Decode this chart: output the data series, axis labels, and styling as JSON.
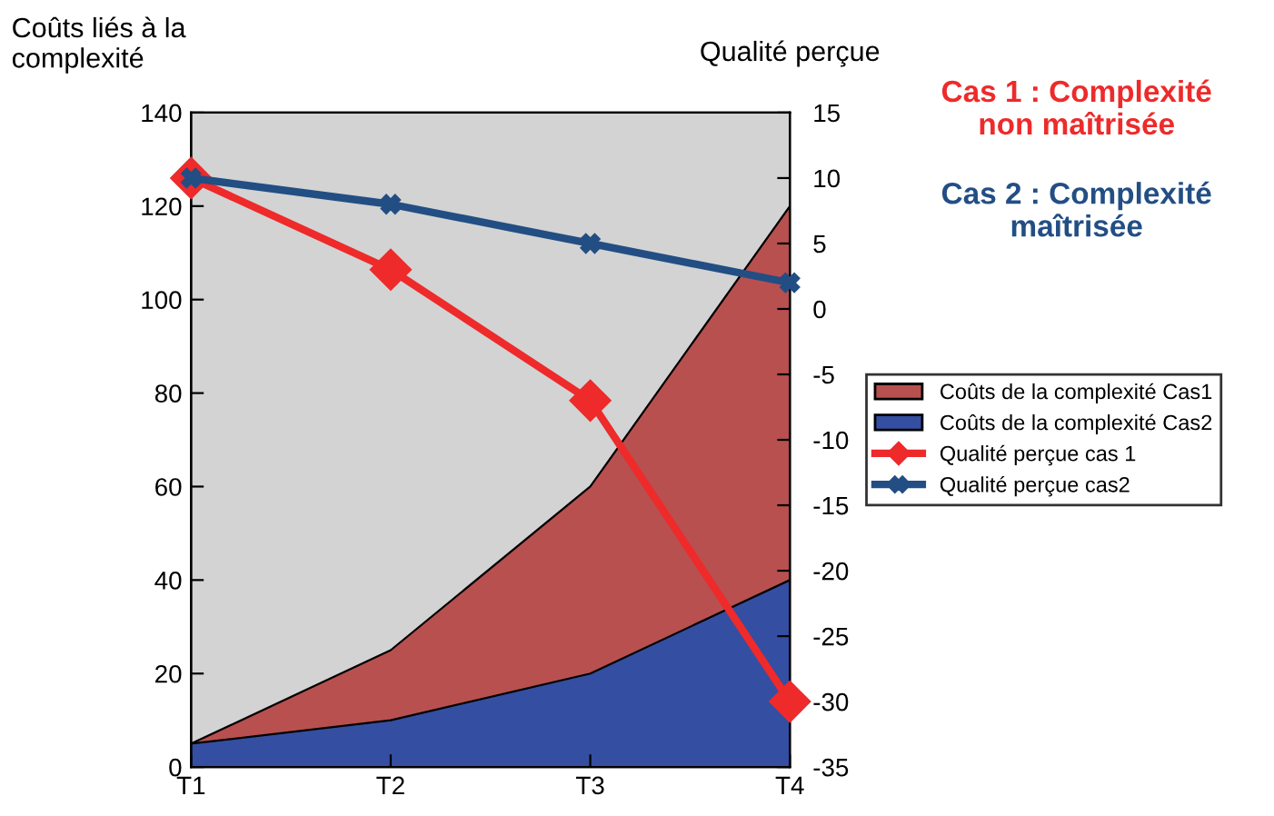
{
  "chart_data": {
    "type": "area",
    "categories": [
      "T1",
      "T2",
      "T3",
      "T4"
    ],
    "ylabel": "Coûts liés à la\ncomplexité",
    "y2label": "Qualité perçue",
    "series": [
      {
        "name": "Coûts de la complexité Cas1",
        "color": "#b85050",
        "values": [
          5,
          25,
          60,
          120
        ]
      },
      {
        "name": "Coûts de la complexité Cas2",
        "color": "#344ea2",
        "values": [
          5,
          10,
          20,
          40
        ]
      },
      {
        "name": "Qualité perçue cas 1",
        "type": "line",
        "axis": "y2",
        "color": "#ee2a2a",
        "marker": "diamond",
        "values": [
          10,
          3,
          -7,
          -30
        ]
      },
      {
        "name": "Qualité perçue cas2",
        "type": "line",
        "axis": "y2",
        "color": "#224e84",
        "marker": "cross",
        "values": [
          10,
          8,
          5,
          2
        ]
      }
    ],
    "ylim": [
      0,
      140
    ],
    "yticks": [
      0,
      20,
      40,
      60,
      80,
      100,
      120,
      140
    ],
    "y2lim": [
      -35,
      15
    ],
    "y2ticks": [
      -35,
      -30,
      -25,
      -20,
      -15,
      -10,
      -5,
      0,
      5,
      10,
      15
    ],
    "annotations": [
      "Cas 1 : Complexité\nnon maîtrisée",
      "Cas 2 : Complexité\nmaîtrisée"
    ],
    "grid": false,
    "legend": "right"
  }
}
